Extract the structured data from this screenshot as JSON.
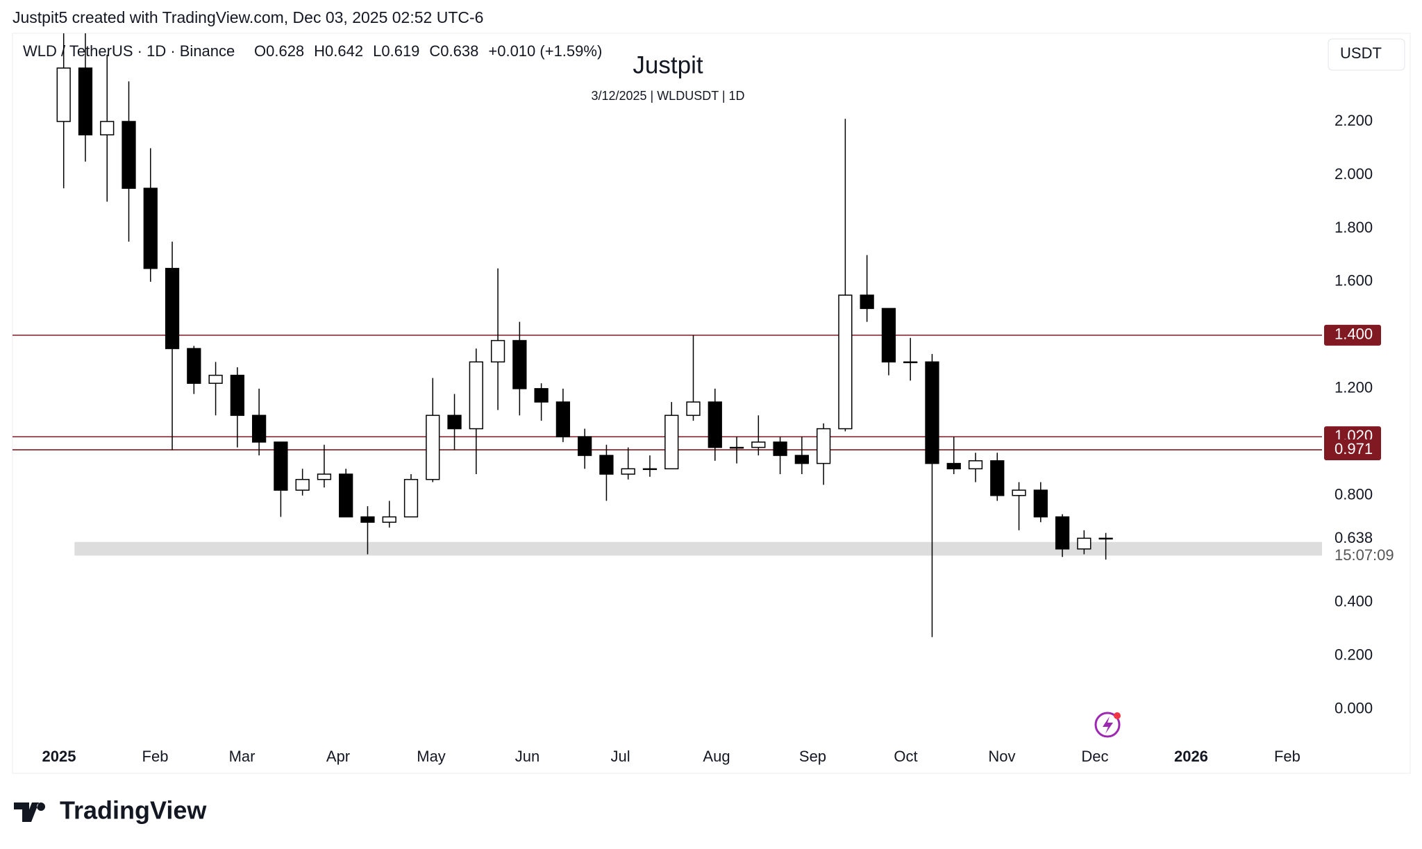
{
  "header": "Justpit5 created with TradingView.com, Dec 03, 2025 02:52 UTC-6",
  "footer": "TradingView",
  "chart_data": {
    "type": "candlestick",
    "title": "Justpit",
    "subtitle": "3/12/2025 | WLDUSDT | 1D",
    "symbol": "WLD / TetherUS · 1D · Binance",
    "legend": [
      "O0.628",
      "H0.642",
      "L0.619",
      "C0.638",
      "+0.010 (+1.59%)"
    ],
    "currency": "USDT",
    "x_labels": [
      "2025",
      "Feb",
      "Mar",
      "Apr",
      "May",
      "Jun",
      "Jul",
      "Aug",
      "Sep",
      "Oct",
      "Nov",
      "Dec",
      "2026",
      "Feb"
    ],
    "series": {
      "open": [
        2.2,
        2.4,
        2.15,
        2.2,
        1.95,
        1.65,
        1.35,
        1.22,
        1.25,
        1.1,
        1.0,
        0.82,
        0.86,
        0.88,
        0.72,
        0.7,
        0.72,
        0.86,
        1.1,
        1.05,
        1.3,
        1.38,
        1.2,
        1.15,
        1.02,
        0.95,
        0.88,
        0.9,
        0.9,
        1.1,
        1.15,
        0.98,
        0.98,
        1.0,
        0.95,
        0.92,
        1.05,
        1.55,
        1.5,
        1.3,
        1.3,
        0.92,
        0.9,
        0.93,
        0.8,
        0.82,
        0.72,
        0.6,
        0.64
      ],
      "high": [
        2.6,
        2.55,
        2.45,
        2.35,
        2.1,
        1.75,
        1.36,
        1.3,
        1.28,
        1.2,
        1.0,
        0.9,
        0.99,
        0.9,
        0.76,
        0.78,
        0.88,
        1.24,
        1.18,
        1.35,
        1.65,
        1.45,
        1.22,
        1.2,
        1.05,
        0.99,
        0.98,
        0.95,
        1.15,
        1.4,
        1.2,
        1.02,
        1.1,
        1.02,
        1.02,
        1.07,
        2.21,
        1.7,
        1.5,
        1.39,
        1.33,
        1.02,
        0.96,
        0.96,
        0.85,
        0.85,
        0.73,
        0.67,
        0.66
      ],
      "low": [
        1.95,
        2.05,
        1.9,
        1.75,
        1.6,
        0.97,
        1.18,
        1.1,
        0.98,
        0.95,
        0.72,
        0.8,
        0.83,
        0.72,
        0.58,
        0.68,
        0.72,
        0.85,
        0.97,
        0.88,
        1.12,
        1.1,
        1.08,
        1.0,
        0.9,
        0.78,
        0.86,
        0.87,
        0.9,
        1.08,
        0.93,
        0.92,
        0.95,
        0.88,
        0.88,
        0.84,
        1.04,
        1.45,
        1.25,
        1.23,
        0.27,
        0.88,
        0.85,
        0.78,
        0.67,
        0.7,
        0.57,
        0.58,
        0.56
      ],
      "close": [
        2.4,
        2.15,
        2.2,
        1.95,
        1.65,
        1.35,
        1.22,
        1.25,
        1.1,
        1.0,
        0.82,
        0.86,
        0.88,
        0.72,
        0.7,
        0.72,
        0.86,
        1.1,
        1.05,
        1.3,
        1.38,
        1.2,
        1.15,
        1.02,
        0.95,
        0.88,
        0.9,
        0.9,
        1.1,
        1.15,
        0.98,
        0.98,
        1.0,
        0.95,
        0.92,
        1.05,
        1.55,
        1.5,
        1.3,
        1.3,
        0.92,
        0.9,
        0.93,
        0.8,
        0.82,
        0.72,
        0.6,
        0.64,
        0.638
      ]
    },
    "ylim": [
      -0.11,
      2.53
    ],
    "yticks": [
      {
        "value": 0,
        "label": "0.000"
      },
      {
        "value": 0.2,
        "label": "0.200"
      },
      {
        "value": 0.4,
        "label": "0.400"
      },
      {
        "value": 0.8,
        "label": "0.800"
      },
      {
        "value": 1.2,
        "label": "1.200"
      },
      {
        "value": 1.6,
        "label": "1.600"
      },
      {
        "value": 1.8,
        "label": "1.800"
      },
      {
        "value": 2,
        "label": "2.000"
      },
      {
        "value": 2.2,
        "label": "2.200"
      }
    ],
    "levels": [
      {
        "value": 1.4,
        "label": "1.400"
      },
      {
        "value": 1.02,
        "label": "1.020"
      },
      {
        "value": 0.971,
        "label": "0.971"
      }
    ],
    "level_color": "#801922",
    "zone": [
      0.575,
      0.626
    ],
    "last_price": {
      "value": 0.638,
      "label": "0.638"
    },
    "countdown": "15:07:09"
  }
}
